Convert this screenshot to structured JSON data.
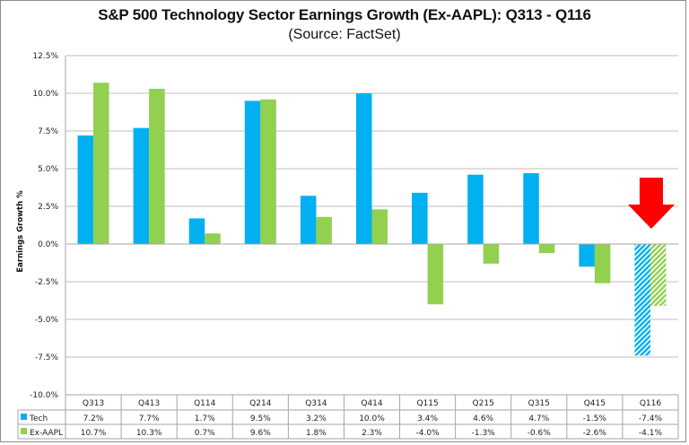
{
  "title": "S&P 500 Technology Sector Earnings Growth (Ex-AAPL): Q313 - Q116",
  "subtitle": "(Source: FactSet)",
  "colors": {
    "tech": "#00b0f0",
    "ex_aapl": "#92d050",
    "arrow": "#ff0000",
    "grid": "#bfbfbf"
  },
  "chart_data": {
    "type": "bar",
    "title": "S&P 500 Technology Sector Earnings Growth (Ex-AAPL): Q313 - Q116",
    "subtitle": "(Source: FactSet)",
    "xlabel": "",
    "ylabel": "Earnings Growth %",
    "ylim": [
      -10.0,
      12.5
    ],
    "yticks": [
      12.5,
      10.0,
      7.5,
      5.0,
      2.5,
      0.0,
      -2.5,
      -5.0,
      -7.5,
      -10.0
    ],
    "ytick_labels": [
      "12.5%",
      "10.0%",
      "7.5%",
      "5.0%",
      "2.5%",
      "0.0%",
      "-2.5%",
      "-5.0%",
      "-7.5%",
      "-10.0%"
    ],
    "grid": true,
    "legend": "data-table-bottom",
    "categories": [
      "Q313",
      "Q413",
      "Q114",
      "Q214",
      "Q314",
      "Q414",
      "Q115",
      "Q215",
      "Q315",
      "Q415",
      "Q116"
    ],
    "series": [
      {
        "name": "Tech",
        "values": [
          7.2,
          7.7,
          1.7,
          9.5,
          3.2,
          10.0,
          3.4,
          4.6,
          4.7,
          -1.5,
          -7.4
        ],
        "labels": [
          "7.2%",
          "7.7%",
          "1.7%",
          "9.5%",
          "3.2%",
          "10.0%",
          "3.4%",
          "4.6%",
          "4.7%",
          "-1.5%",
          "-7.4%"
        ]
      },
      {
        "name": "Ex-AAPL",
        "values": [
          10.7,
          10.3,
          0.7,
          9.6,
          1.8,
          2.3,
          -4.0,
          -1.3,
          -0.6,
          -2.6,
          -4.1
        ],
        "labels": [
          "10.7%",
          "10.3%",
          "0.7%",
          "9.6%",
          "1.8%",
          "2.3%",
          "-4.0%",
          "-1.3%",
          "-0.6%",
          "-2.6%",
          "-4.1%"
        ]
      }
    ],
    "hatched_categories": [
      "Q116"
    ],
    "annotations": [
      {
        "type": "arrow",
        "direction": "down",
        "category": "Q116",
        "color": "#ff0000"
      }
    ]
  }
}
